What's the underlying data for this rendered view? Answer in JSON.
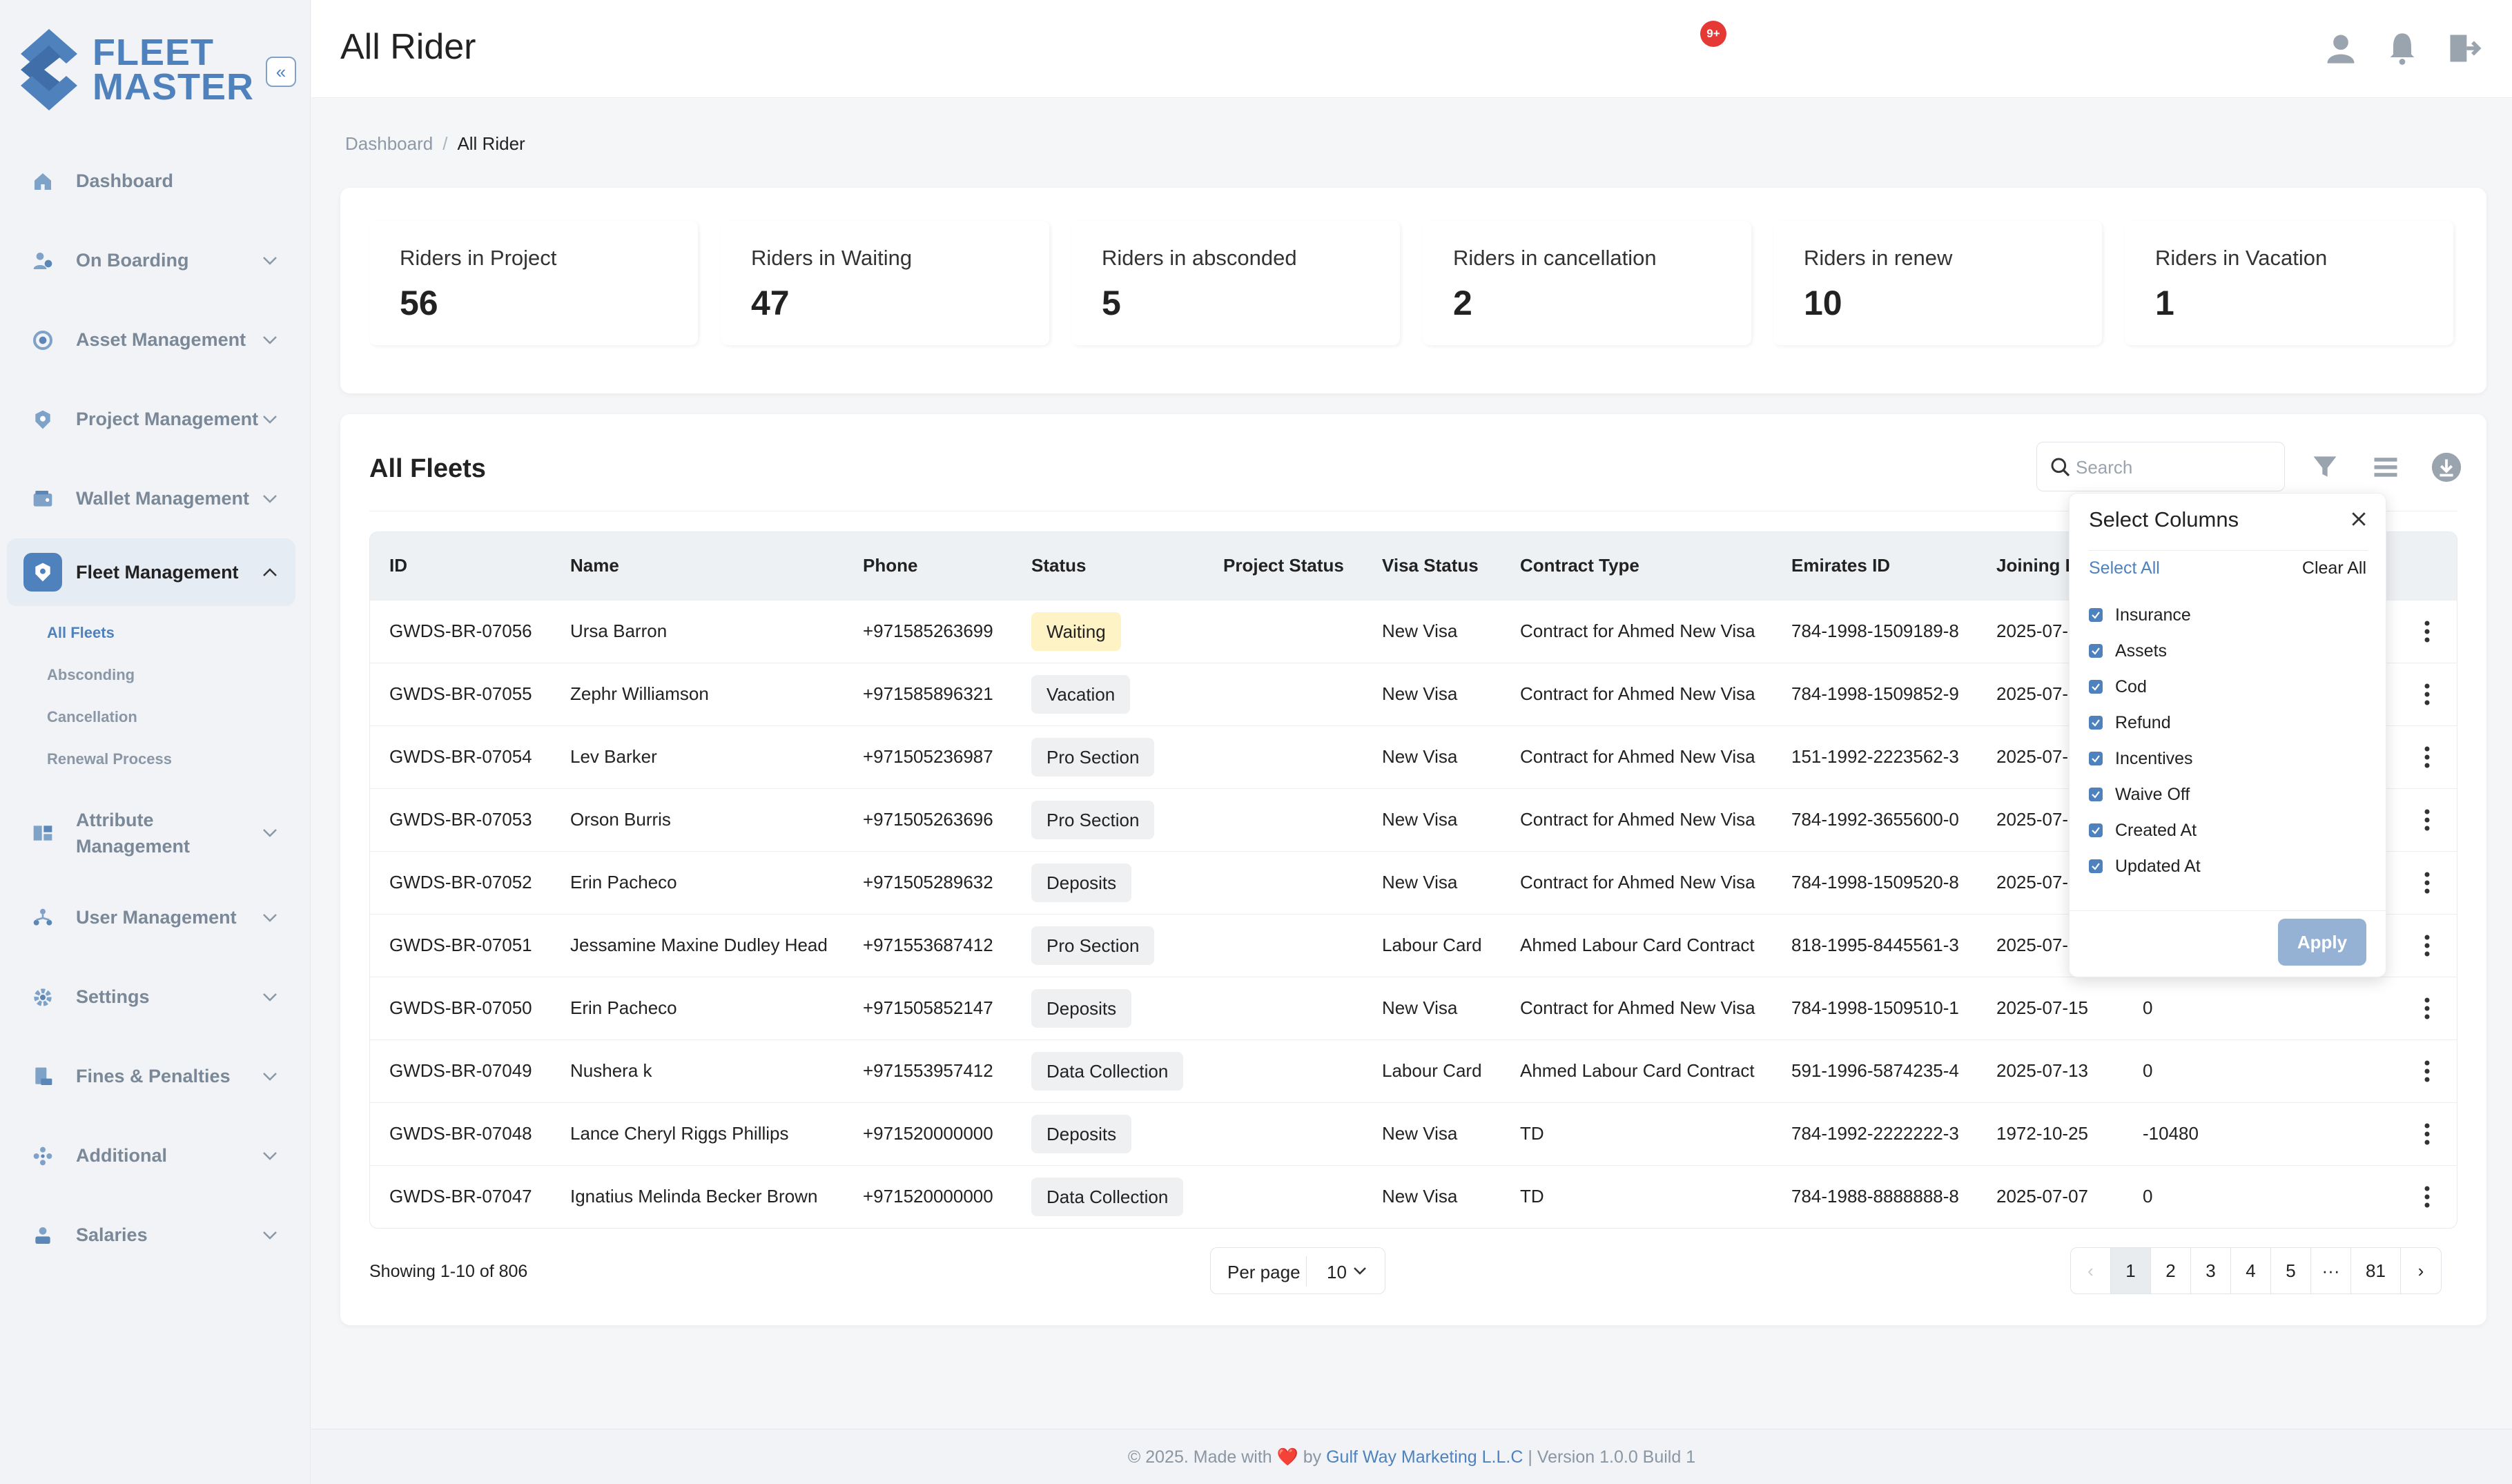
{
  "brand": {
    "line1": "FLEET",
    "line2": "MASTER",
    "collapse_icon": "double-chevron-left-icon"
  },
  "sidebar": {
    "items": [
      {
        "label": "Dashboard",
        "icon": "home-icon"
      },
      {
        "label": "On Boarding",
        "icon": "onboarding-icon"
      },
      {
        "label": "Asset Management",
        "icon": "asset-icon"
      },
      {
        "label": "Project Management",
        "icon": "project-icon"
      },
      {
        "label": "Wallet Management",
        "icon": "wallet-icon"
      },
      {
        "label": "Fleet Management",
        "icon": "fleet-icon"
      },
      {
        "label": "Attribute Management",
        "icon": "attribute-icon"
      },
      {
        "label": "User Management",
        "icon": "users-icon"
      },
      {
        "label": "Settings",
        "icon": "gear-icon"
      },
      {
        "label": "Fines & Penalties",
        "icon": "fines-icon"
      },
      {
        "label": "Additional",
        "icon": "additional-icon"
      },
      {
        "label": "Salaries",
        "icon": "salaries-icon"
      }
    ],
    "fleet_sub": [
      "All Fleets",
      "Absconding",
      "Cancellation",
      "Renewal Process"
    ]
  },
  "header": {
    "title": "All Rider",
    "notification_count": "9+"
  },
  "breadcrumb": {
    "home": "Dashboard",
    "current": "All Rider"
  },
  "stats": [
    {
      "label": "Riders in Project",
      "value": "56"
    },
    {
      "label": "Riders in Waiting",
      "value": "47"
    },
    {
      "label": "Riders in absconded",
      "value": "5"
    },
    {
      "label": "Riders in cancellation",
      "value": "2"
    },
    {
      "label": "Riders in renew",
      "value": "10"
    },
    {
      "label": "Riders in Vacation",
      "value": "1"
    }
  ],
  "fleets": {
    "title": "All Fleets",
    "search_placeholder": "Search",
    "columns": [
      "ID",
      "Name",
      "Phone",
      "Status",
      "Project Status",
      "Visa Status",
      "Contract Type",
      "Emirates ID",
      "Joining D",
      ""
    ],
    "rows": [
      {
        "id": "GWDS-BR-07056",
        "name": "Ursa Barron",
        "phone": "+971585263699",
        "status": "Waiting",
        "project_status": "",
        "visa": "New Visa",
        "contract": "Contract for Ahmed New Visa",
        "emirates": "784-1998-1509189-8",
        "joining": "2025-07-",
        "extra": ""
      },
      {
        "id": "GWDS-BR-07055",
        "name": "Zephr Williamson",
        "phone": "+971585896321",
        "status": "Vacation",
        "project_status": "",
        "visa": "New Visa",
        "contract": "Contract for Ahmed New Visa",
        "emirates": "784-1998-1509852-9",
        "joining": "2025-07-",
        "extra": ""
      },
      {
        "id": "GWDS-BR-07054",
        "name": "Lev Barker",
        "phone": "+971505236987",
        "status": "Pro Section",
        "project_status": "",
        "visa": "New Visa",
        "contract": "Contract for Ahmed New Visa",
        "emirates": "151-1992-2223562-3",
        "joining": "2025-07-",
        "extra": ""
      },
      {
        "id": "GWDS-BR-07053",
        "name": "Orson Burris",
        "phone": "+971505263696",
        "status": "Pro Section",
        "project_status": "",
        "visa": "New Visa",
        "contract": "Contract for Ahmed New Visa",
        "emirates": "784-1992-3655600-0",
        "joining": "2025-07-",
        "extra": ""
      },
      {
        "id": "GWDS-BR-07052",
        "name": "Erin Pacheco",
        "phone": "+971505289632",
        "status": "Deposits",
        "project_status": "",
        "visa": "New Visa",
        "contract": "Contract for Ahmed New Visa",
        "emirates": "784-1998-1509520-8",
        "joining": "2025-07-",
        "extra": ""
      },
      {
        "id": "GWDS-BR-07051",
        "name": "Jessamine Maxine Dudley Head",
        "phone": "+971553687412",
        "status": "Pro Section",
        "project_status": "",
        "visa": "Labour Card",
        "contract": "Ahmed Labour Card Contract",
        "emirates": "818-1995-8445561-3",
        "joining": "2025-07-",
        "extra": ""
      },
      {
        "id": "GWDS-BR-07050",
        "name": "Erin Pacheco",
        "phone": "+971505852147",
        "status": "Deposits",
        "project_status": "",
        "visa": "New Visa",
        "contract": "Contract for Ahmed New Visa",
        "emirates": "784-1998-1509510-1",
        "joining": "2025-07-15",
        "extra": "0"
      },
      {
        "id": "GWDS-BR-07049",
        "name": "Nushera k",
        "phone": "+971553957412",
        "status": "Data Collection",
        "project_status": "",
        "visa": "Labour Card",
        "contract": "Ahmed Labour Card Contract",
        "emirates": "591-1996-5874235-4",
        "joining": "2025-07-13",
        "extra": "0"
      },
      {
        "id": "GWDS-BR-07048",
        "name": "Lance Cheryl Riggs Phillips",
        "phone": "+971520000000",
        "status": "Deposits",
        "project_status": "",
        "visa": "New Visa",
        "contract": "TD",
        "emirates": "784-1992-2222222-3",
        "joining": "1972-10-25",
        "extra": "-10480"
      },
      {
        "id": "GWDS-BR-07047",
        "name": "Ignatius Melinda Becker Brown",
        "phone": "+971520000000",
        "status": "Data Collection",
        "project_status": "",
        "visa": "New Visa",
        "contract": "TD",
        "emirates": "784-1988-8888888-8",
        "joining": "2025-07-07",
        "extra": "0"
      }
    ],
    "showing": "Showing 1-10 of 806",
    "per_page_label": "Per page",
    "per_page_value": "10",
    "pages": [
      "1",
      "2",
      "3",
      "4",
      "5",
      "···",
      "81"
    ]
  },
  "column_picker": {
    "title": "Select Columns",
    "select_all": "Select All",
    "clear_all": "Clear All",
    "options": [
      "Insurance",
      "Assets",
      "Cod",
      "Refund",
      "Incentives",
      "Waive Off",
      "Created At",
      "Updated At"
    ],
    "apply": "Apply"
  },
  "footer": {
    "prefix": "© 2025. Made with",
    "heart": "❤️",
    "by": "by",
    "company": "Gulf Way Marketing L.L.C",
    "version": "| Version 1.0.0 Build 1"
  },
  "colors": {
    "accent": "#4f82bd",
    "waiting": "#fdf3c4",
    "badge": "#e53935"
  }
}
